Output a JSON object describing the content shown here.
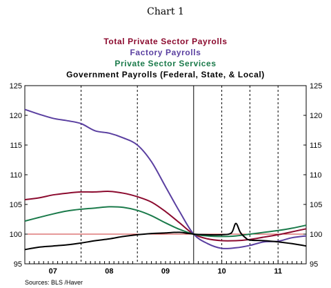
{
  "chart_data": {
    "type": "line",
    "title": "Chart 1",
    "source": "Sources:  BLS /Haver",
    "xlabel": "",
    "ylabel": "",
    "ylim": [
      95,
      125
    ],
    "y_ticks": [
      95,
      100,
      105,
      110,
      115,
      120,
      125
    ],
    "xlim": [
      2006.0,
      2011.0
    ],
    "x_tick_labels": [
      "07",
      "08",
      "09",
      "10",
      "11"
    ],
    "x_tick_positions": [
      2006.5,
      2007.5,
      2008.5,
      2009.5,
      2010.5
    ],
    "reference_line": 100,
    "reference_color": "#cc3333",
    "vertical_dashed_lines": [
      2007.0,
      2008.0,
      2009.5,
      2010.0,
      2010.5
    ],
    "vertical_solid_line": 2009.0,
    "grid": "vertical year lines only",
    "legend_placement": "top-center",
    "series": [
      {
        "name": "Total Private Sector Payrolls",
        "color": "#8b0a2e",
        "x": [
          2006.0,
          2006.25,
          2006.5,
          2006.75,
          2007.0,
          2007.25,
          2007.5,
          2007.75,
          2008.0,
          2008.25,
          2008.5,
          2008.75,
          2009.0,
          2009.25,
          2009.5,
          2009.75,
          2010.0,
          2010.25,
          2010.5,
          2010.75,
          2011.0
        ],
        "values": [
          105.8,
          106.1,
          106.6,
          106.9,
          107.1,
          107.1,
          107.2,
          106.9,
          106.3,
          105.4,
          103.8,
          101.9,
          100.0,
          99.2,
          98.9,
          98.9,
          99.1,
          99.5,
          99.9,
          100.4,
          100.9
        ]
      },
      {
        "name": "Factory Payrolls",
        "color": "#5a3fa0",
        "x": [
          2006.0,
          2006.25,
          2006.5,
          2006.75,
          2007.0,
          2007.25,
          2007.5,
          2007.75,
          2008.0,
          2008.25,
          2008.5,
          2008.75,
          2009.0,
          2009.25,
          2009.5,
          2009.75,
          2010.0,
          2010.25,
          2010.5,
          2010.75,
          2011.0
        ],
        "values": [
          121.0,
          120.2,
          119.5,
          119.1,
          118.6,
          117.4,
          117.0,
          116.2,
          115.0,
          112.2,
          108.0,
          103.8,
          100.0,
          98.4,
          97.6,
          97.7,
          98.1,
          98.7,
          98.8,
          99.4,
          99.7
        ]
      },
      {
        "name": "Private Sector Services",
        "color": "#1a7a4a",
        "x": [
          2006.0,
          2006.25,
          2006.5,
          2006.75,
          2007.0,
          2007.25,
          2007.5,
          2007.75,
          2008.0,
          2008.25,
          2008.5,
          2008.75,
          2009.0,
          2009.25,
          2009.5,
          2009.75,
          2010.0,
          2010.25,
          2010.5,
          2010.75,
          2011.0
        ],
        "values": [
          102.2,
          102.8,
          103.4,
          103.9,
          104.2,
          104.4,
          104.6,
          104.5,
          104.0,
          103.1,
          101.9,
          100.8,
          100.0,
          99.7,
          99.6,
          99.7,
          100.0,
          100.3,
          100.6,
          101.0,
          101.5
        ]
      },
      {
        "name": "Government Payrolls (Federal, State, & Local)",
        "color": "#000000",
        "x": [
          2006.0,
          2006.25,
          2006.5,
          2006.75,
          2007.0,
          2007.25,
          2007.5,
          2007.75,
          2008.0,
          2008.25,
          2008.5,
          2008.75,
          2009.0,
          2009.25,
          2009.5,
          2009.67,
          2009.75,
          2009.83,
          2009.92,
          2010.0,
          2010.25,
          2010.5,
          2010.75,
          2011.0
        ],
        "values": [
          97.4,
          97.8,
          98.0,
          98.2,
          98.5,
          98.9,
          99.2,
          99.6,
          99.9,
          100.1,
          100.2,
          100.3,
          100.0,
          99.9,
          99.9,
          100.2,
          101.8,
          100.3,
          99.4,
          99.0,
          98.9,
          98.7,
          98.4,
          98.0
        ]
      }
    ]
  }
}
